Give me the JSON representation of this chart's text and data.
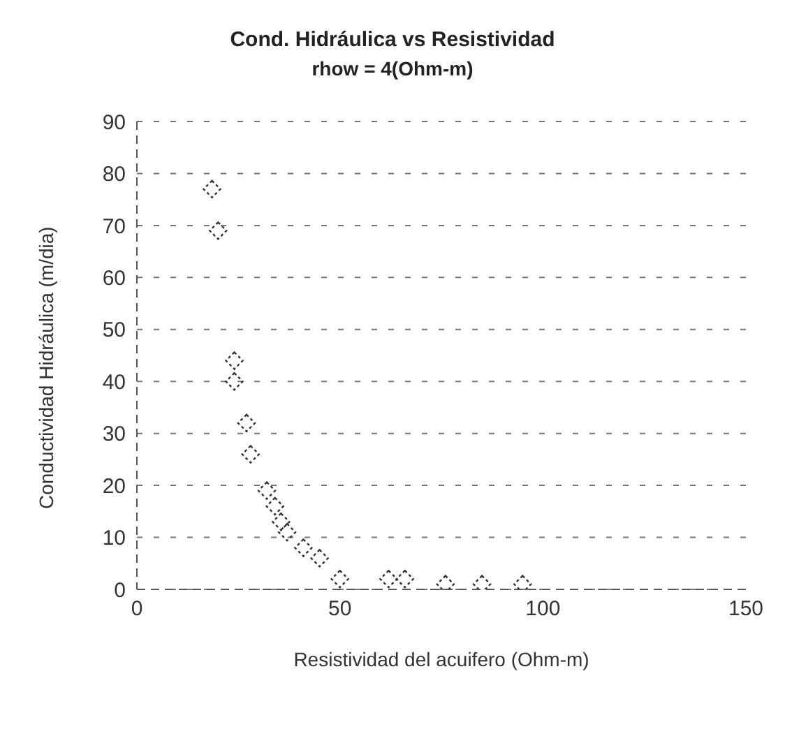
{
  "chart_data": {
    "type": "scatter",
    "title": "Cond. Hidráulica vs Resistividad",
    "subtitle": "rhow = 4(Ohm-m)",
    "xlabel": "Resistividad del acuifero (Ohm-m)",
    "ylabel": "Conductividad Hidráulica (m/dia)",
    "x": [
      18.5,
      20,
      24,
      24,
      27,
      28,
      32,
      34,
      35.5,
      37,
      41,
      45,
      50,
      62,
      66,
      76,
      85,
      95
    ],
    "series": [
      {
        "color": "#333333",
        "values": [
          77,
          69,
          44,
          40,
          32,
          26,
          19,
          16,
          13,
          11,
          8,
          6,
          2,
          2,
          2,
          1,
          1,
          1
        ]
      }
    ],
    "xlim": [
      0,
      150
    ],
    "xticks": [
      0,
      50,
      100,
      150
    ],
    "ylim": [
      0,
      90
    ],
    "yticks": [
      0,
      10,
      20,
      30,
      40,
      50,
      60,
      70,
      80,
      90
    ],
    "grid": "y",
    "marker": "diamond",
    "legend": false
  }
}
